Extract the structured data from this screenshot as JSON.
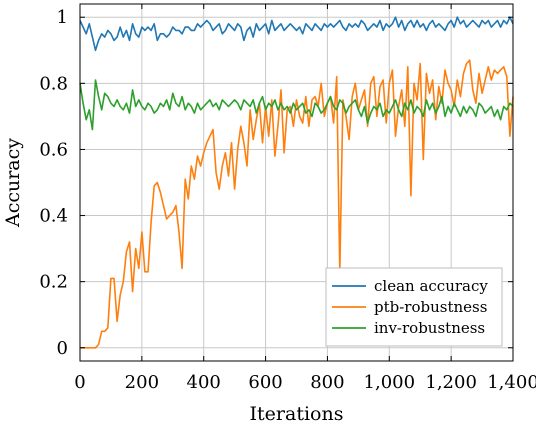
{
  "chart_data": {
    "type": "line",
    "xlabel": "Iterations",
    "ylabel": "Accuracy",
    "xlim": [
      0,
      1400
    ],
    "ylim": [
      -0.04,
      1.04
    ],
    "xticks": [
      0,
      200,
      400,
      600,
      800,
      1000,
      1200,
      1400
    ],
    "xtick_labels": [
      "0",
      "200",
      "400",
      "600",
      "800",
      "1,000",
      "1,200",
      "1,400"
    ],
    "yticks": [
      0,
      0.2,
      0.4,
      0.6,
      0.8,
      1
    ],
    "ytick_labels": [
      "0",
      "0.2",
      "0.4",
      "0.6",
      "0.8",
      "1"
    ],
    "grid": true,
    "legend_position": "bottom-right",
    "x": [
      0,
      10,
      20,
      30,
      40,
      50,
      60,
      70,
      80,
      90,
      100,
      110,
      120,
      130,
      140,
      150,
      160,
      170,
      180,
      190,
      200,
      210,
      220,
      230,
      240,
      250,
      260,
      270,
      280,
      290,
      300,
      310,
      320,
      330,
      340,
      350,
      360,
      370,
      380,
      390,
      400,
      410,
      420,
      430,
      440,
      450,
      460,
      470,
      480,
      490,
      500,
      510,
      520,
      530,
      540,
      550,
      560,
      570,
      580,
      590,
      600,
      610,
      620,
      630,
      640,
      650,
      660,
      670,
      680,
      690,
      700,
      710,
      720,
      730,
      740,
      750,
      760,
      770,
      780,
      790,
      800,
      810,
      820,
      830,
      840,
      850,
      860,
      870,
      880,
      890,
      900,
      910,
      920,
      930,
      940,
      950,
      960,
      970,
      980,
      990,
      1000,
      1010,
      1020,
      1030,
      1040,
      1050,
      1060,
      1070,
      1080,
      1090,
      1100,
      1110,
      1120,
      1130,
      1140,
      1150,
      1160,
      1170,
      1180,
      1190,
      1200,
      1210,
      1220,
      1230,
      1240,
      1250,
      1260,
      1270,
      1280,
      1290,
      1300,
      1310,
      1320,
      1330,
      1340,
      1350,
      1360,
      1370,
      1380,
      1390,
      1400
    ],
    "series": [
      {
        "name": "clean accuracy",
        "color": "#1f77b4",
        "values": [
          0.99,
          0.97,
          0.95,
          0.98,
          0.94,
          0.9,
          0.93,
          0.95,
          0.94,
          0.96,
          0.95,
          0.93,
          0.94,
          0.97,
          0.94,
          0.96,
          0.93,
          0.98,
          0.95,
          0.94,
          0.97,
          0.96,
          0.97,
          0.96,
          0.98,
          0.93,
          0.95,
          0.95,
          0.94,
          0.95,
          0.97,
          0.96,
          0.96,
          0.95,
          0.97,
          0.97,
          0.96,
          0.96,
          0.98,
          0.97,
          0.98,
          0.99,
          0.98,
          0.96,
          0.97,
          0.98,
          0.95,
          0.96,
          0.98,
          0.97,
          0.96,
          0.98,
          0.97,
          0.93,
          0.96,
          0.97,
          0.94,
          0.98,
          0.96,
          0.97,
          0.98,
          0.95,
          0.99,
          0.96,
          0.97,
          0.98,
          0.96,
          0.97,
          0.98,
          0.97,
          0.96,
          0.97,
          0.95,
          0.98,
          0.97,
          0.96,
          0.98,
          0.97,
          0.96,
          0.98,
          0.97,
          0.98,
          0.97,
          0.98,
          0.99,
          0.97,
          0.96,
          0.98,
          0.97,
          0.98,
          0.97,
          0.99,
          0.98,
          0.96,
          0.97,
          0.98,
          0.97,
          0.99,
          0.96,
          0.98,
          0.97,
          0.98,
          1.0,
          0.97,
          0.99,
          0.96,
          0.98,
          0.99,
          0.97,
          0.99,
          0.97,
          0.98,
          0.96,
          0.98,
          0.99,
          0.97,
          0.98,
          0.97,
          0.96,
          0.98,
          0.99,
          0.97,
          1.0,
          0.98,
          0.99,
          0.97,
          0.98,
          0.99,
          0.98,
          0.97,
          0.99,
          0.98,
          0.99,
          0.97,
          0.98,
          0.99,
          0.97,
          0.99,
          0.98,
          1.0,
          0.98
        ]
      },
      {
        "name": "ptb-robustness",
        "color": "#ff7f0e",
        "values": [
          0.0,
          0.0,
          0.0,
          0.0,
          0.0,
          0.0,
          0.01,
          0.05,
          0.05,
          0.06,
          0.21,
          0.21,
          0.08,
          0.16,
          0.2,
          0.29,
          0.32,
          0.17,
          0.3,
          0.24,
          0.35,
          0.23,
          0.23,
          0.38,
          0.49,
          0.5,
          0.47,
          0.43,
          0.39,
          0.4,
          0.41,
          0.43,
          0.35,
          0.24,
          0.51,
          0.45,
          0.55,
          0.51,
          0.58,
          0.55,
          0.59,
          0.62,
          0.64,
          0.66,
          0.53,
          0.48,
          0.55,
          0.59,
          0.52,
          0.62,
          0.48,
          0.6,
          0.67,
          0.62,
          0.55,
          0.72,
          0.63,
          0.69,
          0.74,
          0.62,
          0.73,
          0.64,
          0.75,
          0.58,
          0.67,
          0.78,
          0.59,
          0.72,
          0.73,
          0.67,
          0.75,
          0.7,
          0.68,
          0.76,
          0.67,
          0.75,
          0.76,
          0.73,
          0.8,
          0.7,
          0.74,
          0.76,
          0.68,
          0.82,
          0.23,
          0.75,
          0.7,
          0.63,
          0.76,
          0.8,
          0.72,
          0.75,
          0.78,
          0.67,
          0.8,
          0.82,
          0.7,
          0.79,
          0.81,
          0.68,
          0.8,
          0.84,
          0.64,
          0.73,
          0.78,
          0.67,
          0.85,
          0.46,
          0.8,
          0.75,
          0.86,
          0.57,
          0.83,
          0.77,
          0.81,
          0.69,
          0.79,
          0.74,
          0.84,
          0.8,
          0.78,
          0.73,
          0.81,
          0.76,
          0.83,
          0.86,
          0.87,
          0.78,
          0.74,
          0.83,
          0.77,
          0.81,
          0.85,
          0.81,
          0.84,
          0.83,
          0.84,
          0.85,
          0.82,
          0.64,
          0.76
        ]
      },
      {
        "name": "inv-robustness",
        "color": "#2ca02c",
        "values": [
          0.8,
          0.74,
          0.69,
          0.72,
          0.66,
          0.81,
          0.76,
          0.72,
          0.77,
          0.76,
          0.74,
          0.73,
          0.75,
          0.73,
          0.72,
          0.74,
          0.71,
          0.78,
          0.73,
          0.75,
          0.73,
          0.72,
          0.74,
          0.73,
          0.71,
          0.72,
          0.74,
          0.73,
          0.75,
          0.72,
          0.77,
          0.74,
          0.73,
          0.76,
          0.72,
          0.74,
          0.73,
          0.71,
          0.74,
          0.72,
          0.73,
          0.74,
          0.75,
          0.73,
          0.74,
          0.72,
          0.75,
          0.74,
          0.73,
          0.74,
          0.75,
          0.74,
          0.72,
          0.75,
          0.74,
          0.73,
          0.75,
          0.71,
          0.74,
          0.76,
          0.72,
          0.74,
          0.73,
          0.75,
          0.72,
          0.74,
          0.72,
          0.73,
          0.71,
          0.74,
          0.72,
          0.73,
          0.74,
          0.71,
          0.72,
          0.7,
          0.74,
          0.73,
          0.71,
          0.72,
          0.74,
          0.76,
          0.73,
          0.72,
          0.75,
          0.74,
          0.71,
          0.73,
          0.74,
          0.75,
          0.72,
          0.7,
          0.73,
          0.68,
          0.71,
          0.73,
          0.72,
          0.74,
          0.7,
          0.72,
          0.71,
          0.73,
          0.75,
          0.72,
          0.7,
          0.74,
          0.72,
          0.75,
          0.71,
          0.73,
          0.72,
          0.7,
          0.75,
          0.72,
          0.74,
          0.71,
          0.73,
          0.76,
          0.7,
          0.73,
          0.71,
          0.74,
          0.72,
          0.7,
          0.73,
          0.71,
          0.73,
          0.72,
          0.7,
          0.74,
          0.73,
          0.71,
          0.72,
          0.73,
          0.7,
          0.72,
          0.69,
          0.73,
          0.72,
          0.74,
          0.73
        ]
      }
    ]
  }
}
